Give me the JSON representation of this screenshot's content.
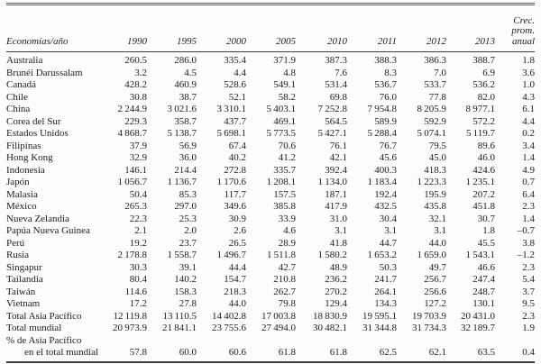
{
  "table": {
    "header": {
      "col0": "Economías/año",
      "years": [
        "1990",
        "1995",
        "2000",
        "2005",
        "2010",
        "2011",
        "2012",
        "2013"
      ],
      "last_col_lines": [
        "Crec.",
        "prom.",
        "anual"
      ]
    },
    "rows": [
      {
        "label": "Australia",
        "values": [
          "260.5",
          "286.0",
          "335.4",
          "371.9",
          "387.3",
          "388.3",
          "386.3",
          "388.7",
          "1.8"
        ]
      },
      {
        "label": "Brunéi Darussalam",
        "values": [
          "3.2",
          "4.5",
          "4.4",
          "4.8",
          "7.6",
          "8.3",
          "7.0",
          "6.9",
          "3.6"
        ]
      },
      {
        "label": "Canadá",
        "values": [
          "428.2",
          "460.9",
          "528.6",
          "549.1",
          "531.4",
          "536.7",
          "533.7",
          "536.2",
          "1.0"
        ]
      },
      {
        "label": "Chile",
        "values": [
          "30.8",
          "38.7",
          "52.1",
          "58.2",
          "69.8",
          "76.0",
          "77.8",
          "82.0",
          "4.3"
        ]
      },
      {
        "label": "China",
        "values": [
          "2 244.9",
          "3 021.6",
          "3 310.1",
          "5 403.1",
          "7 252.8",
          "7 954.8",
          "8 205.9",
          "8 977.1",
          "6.1"
        ]
      },
      {
        "label": "Corea del Sur",
        "values": [
          "229.3",
          "358.7",
          "437.7",
          "469.1",
          "564.5",
          "589.9",
          "592.9",
          "572.2",
          "4.4"
        ]
      },
      {
        "label": "Estados Unidos",
        "values": [
          "4 868.7",
          "5 138.7",
          "5 698.1",
          "5 773.5",
          "5 427.1",
          "5 288.4",
          "5 074.1",
          "5 119.7",
          "0.2"
        ]
      },
      {
        "label": "Filipinas",
        "values": [
          "37.9",
          "56.9",
          "67.4",
          "70.6",
          "76.1",
          "76.7",
          "79.5",
          "89.6",
          "3.4"
        ]
      },
      {
        "label": "Hong Kong",
        "values": [
          "32.9",
          "36.0",
          "40.2",
          "41.2",
          "42.1",
          "45.6",
          "45.0",
          "46.0",
          "1.4"
        ]
      },
      {
        "label": "Indonesia",
        "values": [
          "146.1",
          "214.4",
          "272.8",
          "335.7",
          "392.4",
          "400.3",
          "418.3",
          "424.6",
          "4.9"
        ]
      },
      {
        "label": "Japón",
        "values": [
          "1 056.7",
          "1 136.7",
          "1 170.6",
          "1 208.1",
          "1 134.0",
          "1 183.4",
          "1 223.3",
          "1 235.1",
          "0.7"
        ]
      },
      {
        "label": "Malasia",
        "values": [
          "50.4",
          "85.3",
          "117.7",
          "157.5",
          "187.1",
          "192.4",
          "195.9",
          "207.2",
          "6.4"
        ]
      },
      {
        "label": "México",
        "values": [
          "265.3",
          "297.0",
          "349.6",
          "385.8",
          "417.9",
          "432.5",
          "435.8",
          "451.8",
          "2.3"
        ]
      },
      {
        "label": "Nueva Zelandia",
        "values": [
          "22.3",
          "25.3",
          "30.9",
          "33.9",
          "31.0",
          "30.4",
          "32.1",
          "30.7",
          "1.4"
        ]
      },
      {
        "label": "Papúa Nueva Guinea",
        "values": [
          "2.1",
          "2.0",
          "2.6",
          "4.6",
          "3.1",
          "3.1",
          "3.1",
          "1.8",
          "–0.7"
        ]
      },
      {
        "label": "Perú",
        "values": [
          "19.2",
          "23.7",
          "26.5",
          "28.9",
          "41.8",
          "44.7",
          "44.0",
          "45.5",
          "3.8"
        ]
      },
      {
        "label": "Rusia",
        "values": [
          "2 178.8",
          "1 558.7",
          "1 496.7",
          "1 511.8",
          "1 580.2",
          "1 653.2",
          "1 659.0",
          "1 543.1",
          "–1.2"
        ]
      },
      {
        "label": "Singapur",
        "values": [
          "30.3",
          "39.1",
          "44.4",
          "42.7",
          "48.9",
          "50.3",
          "49.7",
          "46.6",
          "2.3"
        ]
      },
      {
        "label": "Tailandia",
        "values": [
          "80.4",
          "140.2",
          "154.7",
          "210.8",
          "236.2",
          "241.7",
          "256.7",
          "247.4",
          "5.4"
        ]
      },
      {
        "label": "Taiwán",
        "values": [
          "114.6",
          "158.3",
          "218.3",
          "262.7",
          "270.2",
          "264.1",
          "256.6",
          "248.7",
          "3.7"
        ]
      },
      {
        "label": "Vietnam",
        "values": [
          "17.2",
          "27.8",
          "44.0",
          "79.8",
          "129.4",
          "134.3",
          "127.2",
          "130.1",
          "9.5"
        ]
      },
      {
        "label": "Total Asia Pacífico",
        "values": [
          "12 119.8",
          "13 110.5",
          "14 402.8",
          "17 003.8",
          "18 830.9",
          "19 595.1",
          "19 703.9",
          "20 431.0",
          "2.3"
        ]
      },
      {
        "label": "Total mundial",
        "values": [
          "20 973.9",
          "21 841.1",
          "23 755.6",
          "27 494.0",
          "30 482.1",
          "31 344.8",
          "31 734.3",
          "32 189.7",
          "1.9"
        ]
      },
      {
        "label": "% de Asia Pacífico",
        "label2": "en el total mundial",
        "values": [
          "57.8",
          "60.0",
          "60.6",
          "61.8",
          "61.8",
          "62.5",
          "62.1",
          "63.5",
          "0.4"
        ]
      }
    ]
  }
}
